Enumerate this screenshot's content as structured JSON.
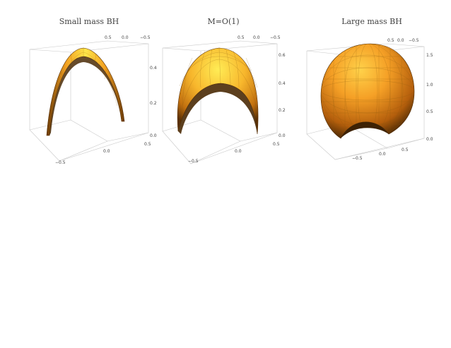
{
  "panels": [
    {
      "title": "Small mass BH",
      "top_ticks": [
        "0.5",
        "0.0",
        "−0.5"
      ],
      "right_ticks": [
        "0.4",
        "0.2",
        "0.0"
      ],
      "bottom_ticks": [
        "0.5",
        "0.0",
        "−0.5"
      ]
    },
    {
      "title": "M=O(1)",
      "top_ticks": [
        "0.5",
        "0.0",
        "−0.5"
      ],
      "right_ticks": [
        "0.6",
        "0.4",
        "0.2",
        "0.0"
      ],
      "bottom_ticks": [
        "0.5",
        "0.0",
        "−0.5"
      ]
    },
    {
      "title": "Large mass BH",
      "top_ticks": [
        "0.5",
        "0.0",
        "−0.5"
      ],
      "right_ticks": [
        "1.5",
        "1.0",
        "0.5",
        "0.0"
      ],
      "bottom_ticks": [
        "0.5",
        "0.0",
        "−0.5"
      ]
    }
  ],
  "colors": {
    "surface_light": "#ffe64a",
    "surface_mid": "#f2a020",
    "surface_dark": "#6b3a06",
    "box": "#c8c8c8"
  }
}
